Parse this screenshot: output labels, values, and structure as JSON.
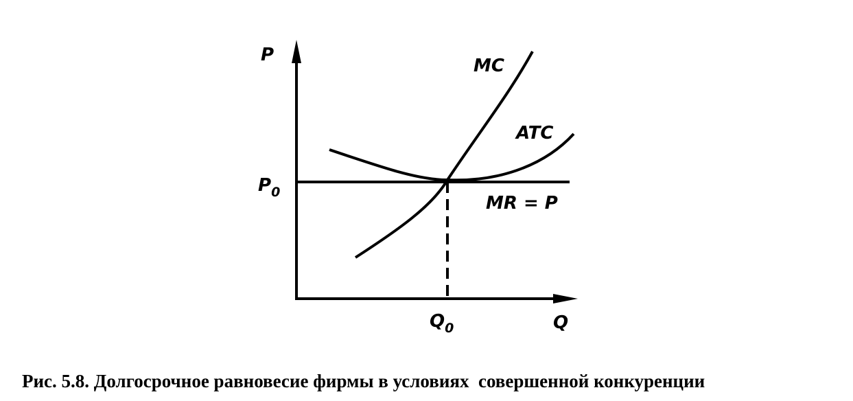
{
  "diagram": {
    "y_axis_label": "P",
    "x_axis_label": "Q",
    "price_level": {
      "base": "P",
      "sub": "0"
    },
    "quantity_level": {
      "base": "Q",
      "sub": "0"
    },
    "curves": {
      "mc": "MC",
      "atc": "ATC",
      "mr": "MR = P"
    },
    "caption": "Рис. 5.8. Долгосрочное равновесие фирмы в условиях  совершенной конкуренции"
  }
}
